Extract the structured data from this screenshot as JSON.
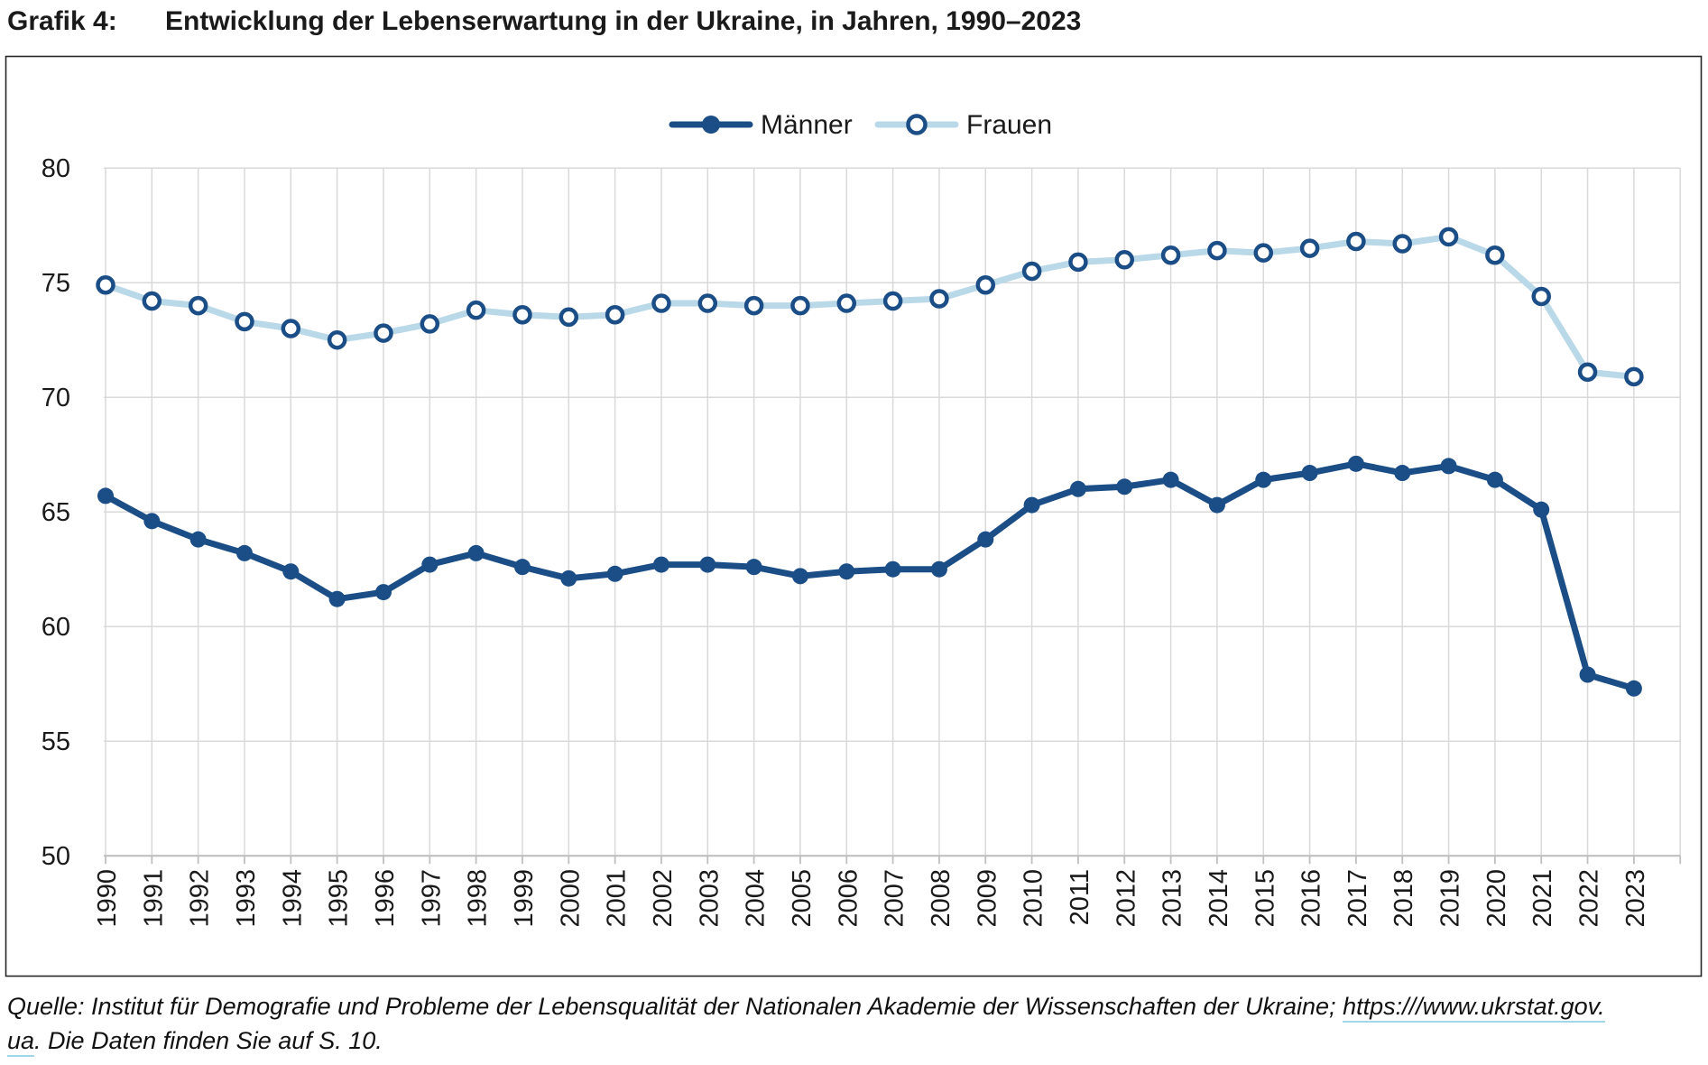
{
  "title": {
    "label": "Grafik 4:",
    "text": "Entwicklung der Lebenserwartung in der Ukraine, in Jahren, 1990–2023"
  },
  "source": {
    "prefix": "Quelle: Institut für Demografie und Probleme der Lebensqualität der Nationalen Akademie der Wissenschaften der Ukraine; ",
    "link_line1": "https:///www.ukrstat.gov.",
    "link_line2": "ua",
    "suffix": ". Die Daten finden Sie auf S. 10."
  },
  "chart_data": {
    "type": "line",
    "title": "Entwicklung der Lebenserwartung in der Ukraine, in Jahren, 1990–2023",
    "x": [
      1990,
      1991,
      1992,
      1993,
      1994,
      1995,
      1996,
      1997,
      1998,
      1999,
      2000,
      2001,
      2002,
      2003,
      2004,
      2005,
      2006,
      2007,
      2008,
      2009,
      2010,
      2011,
      2012,
      2013,
      2014,
      2015,
      2016,
      2017,
      2018,
      2019,
      2020,
      2021,
      2022,
      2023
    ],
    "series": [
      {
        "key": "maenner",
        "name": "Männer",
        "color": "#1B4E87",
        "marker": "filled-circle",
        "values": [
          65.7,
          64.6,
          63.8,
          63.2,
          62.4,
          61.2,
          61.5,
          62.7,
          63.2,
          62.6,
          62.1,
          62.3,
          62.7,
          62.7,
          62.6,
          62.2,
          62.4,
          62.5,
          62.5,
          63.8,
          65.3,
          66.0,
          66.1,
          66.4,
          65.3,
          66.4,
          66.7,
          67.1,
          66.7,
          67.0,
          66.4,
          65.1,
          57.9,
          57.3
        ]
      },
      {
        "key": "frauen",
        "name": "Frauen",
        "color": "#B9D8E8",
        "marker": "open-circle",
        "marker_stroke": "#1B4E87",
        "values": [
          74.9,
          74.2,
          74.0,
          73.3,
          73.0,
          72.5,
          72.8,
          73.2,
          73.8,
          73.6,
          73.5,
          73.6,
          74.1,
          74.1,
          74.0,
          74.0,
          74.1,
          74.2,
          74.3,
          74.9,
          75.5,
          75.9,
          76.0,
          76.2,
          76.4,
          76.3,
          76.5,
          76.8,
          76.7,
          77.0,
          76.2,
          74.4,
          71.1,
          70.9
        ]
      }
    ],
    "ylim": [
      50,
      80
    ],
    "yticks": [
      50,
      55,
      60,
      65,
      70,
      75,
      80
    ],
    "xlabel": "",
    "ylabel": "",
    "grid": true,
    "legend_position": "top-center",
    "colors": {
      "grid": "#D9D9D9",
      "axis": "#BFBFBF",
      "frame": "#262626",
      "text": "#1a1a1a"
    }
  }
}
